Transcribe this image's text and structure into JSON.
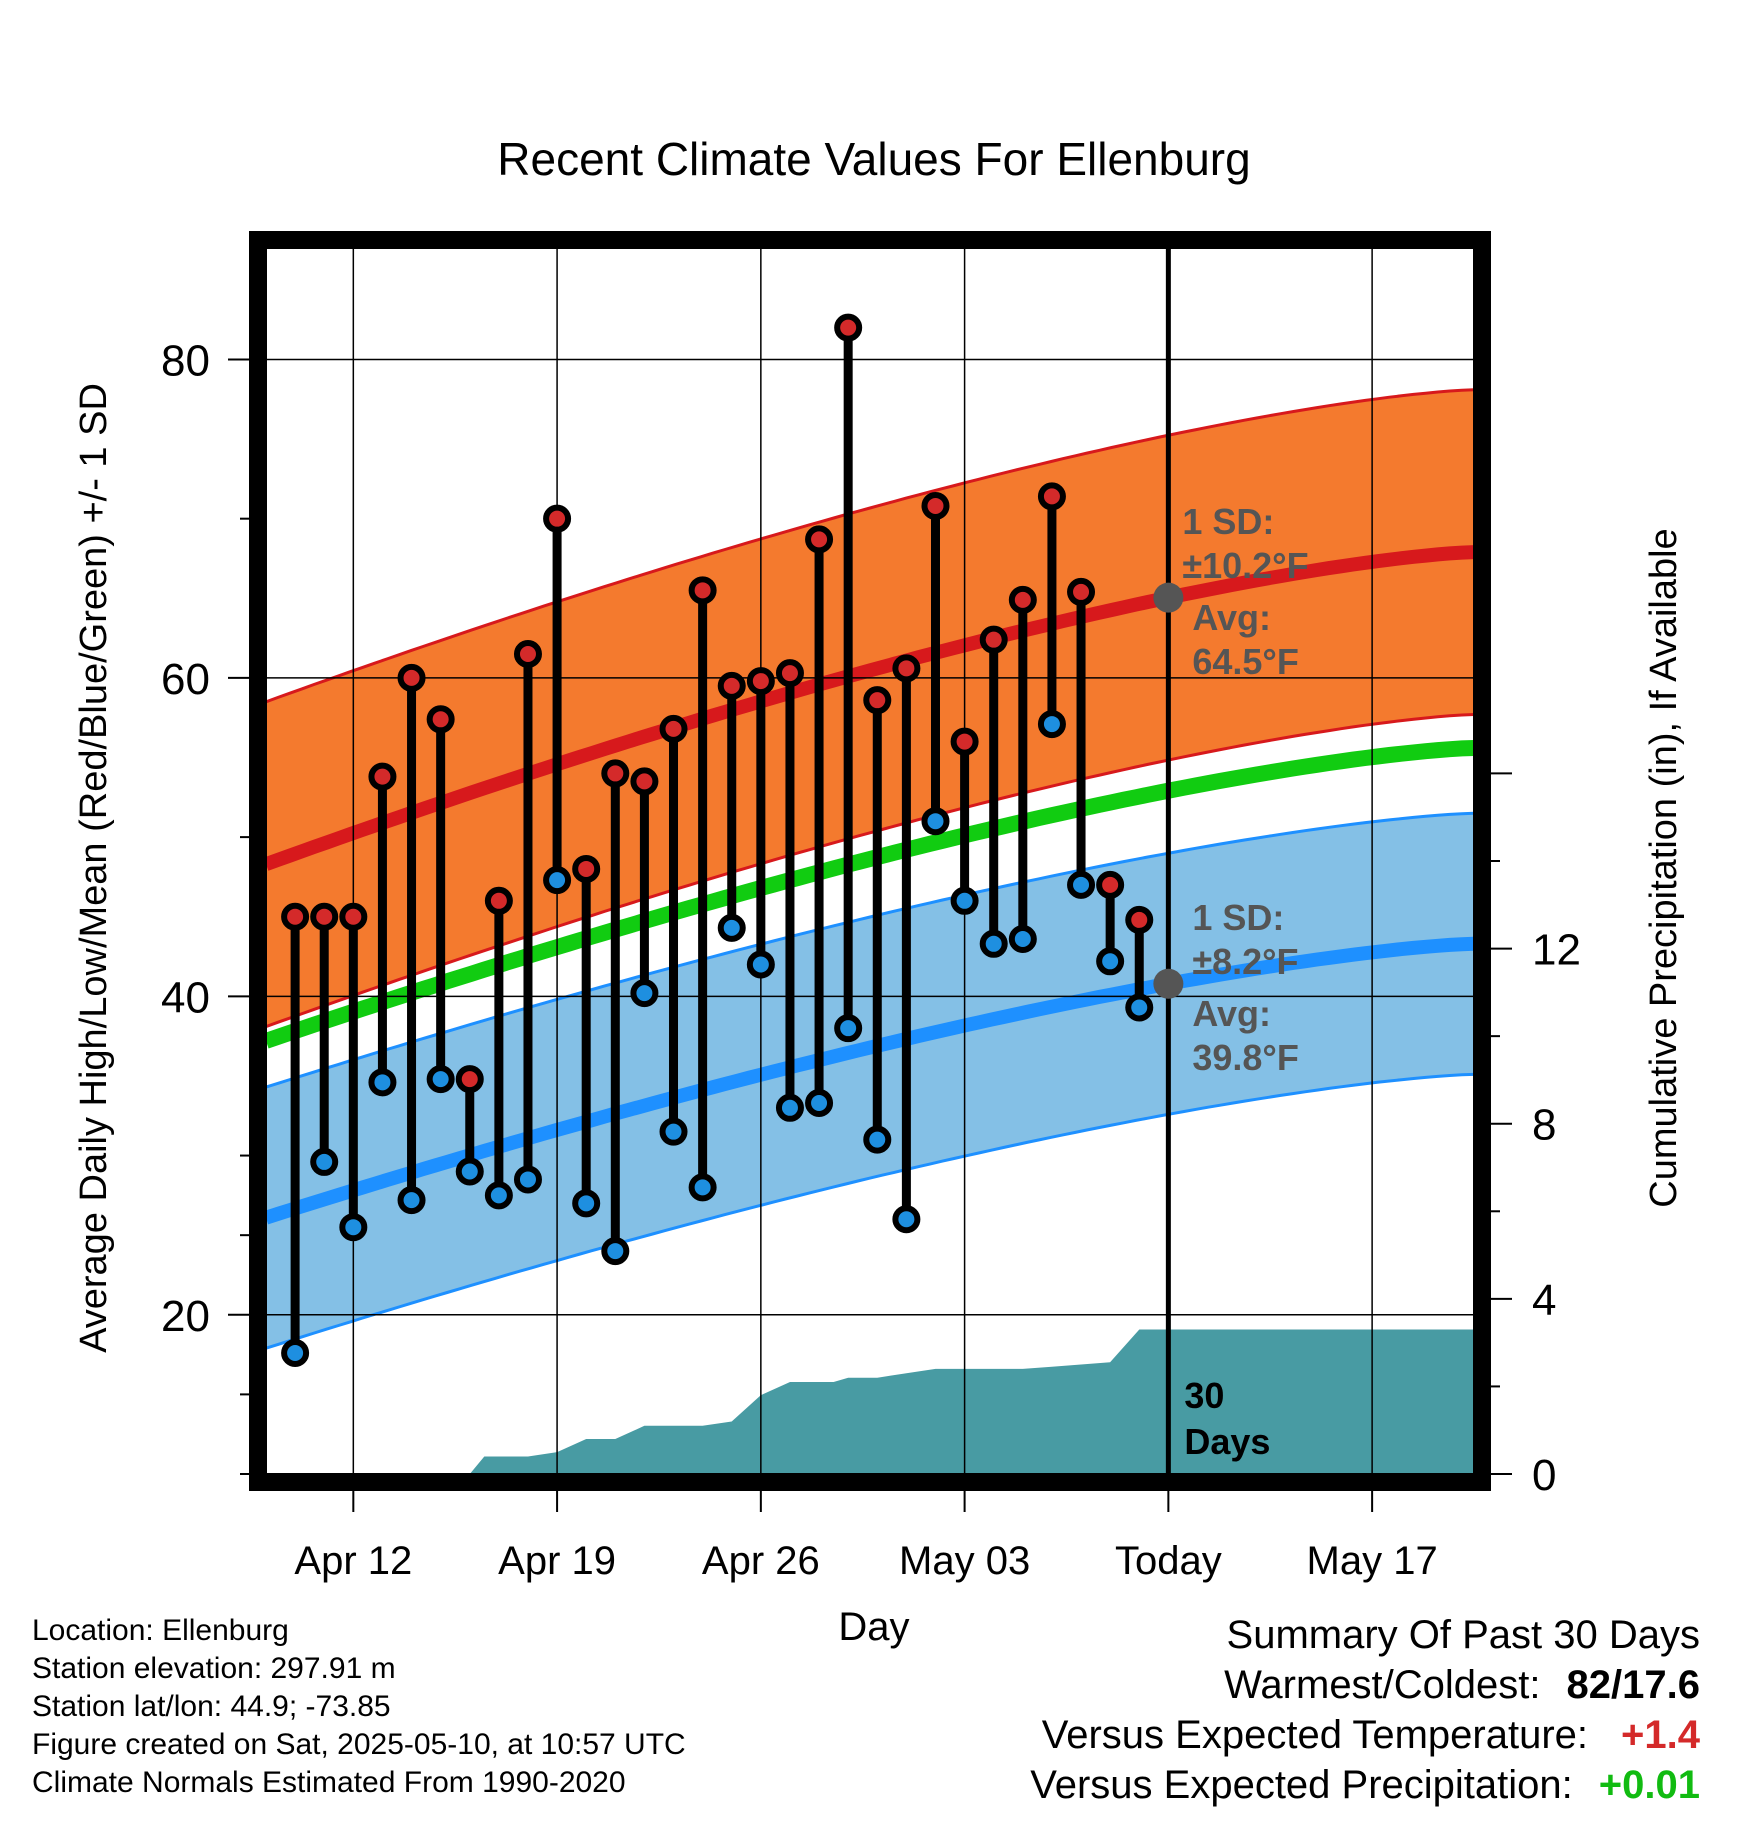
{
  "chart_data": {
    "type": "line",
    "title": "Recent Climate Values For Ellenburg",
    "xlabel": "Day",
    "ylabel": "Average Daily High/Low/Mean (Red/Blue/Green) +/- 1 SD",
    "y2label": "Cumulative Precipitation (in), If Available",
    "ylim": [
      10,
      87
    ],
    "y2lim": [
      0,
      28
    ],
    "y_ticks": [
      "20",
      "40",
      "60",
      "80"
    ],
    "y2_ticks": [
      "0",
      "4",
      "8",
      "12"
    ],
    "x_ticks": [
      "Apr 12",
      "Apr 19",
      "Apr 26",
      "May 03",
      "Today",
      "May 17"
    ],
    "x_tick_days": [
      3,
      10,
      17,
      24,
      31,
      38
    ],
    "x_range_days": [
      0,
      41.5
    ],
    "grid": true,
    "days": [
      1,
      2,
      3,
      4,
      5,
      6,
      7,
      8,
      9,
      10,
      11,
      12,
      13,
      14,
      15,
      16,
      17,
      18,
      19,
      20,
      21,
      22,
      23,
      24,
      25,
      26,
      27,
      28,
      29,
      30
    ],
    "observed_high": [
      45,
      45,
      45,
      53.8,
      60,
      57.4,
      34.8,
      46,
      61.5,
      70,
      48,
      54,
      53.5,
      56.8,
      65.5,
      59.5,
      59.8,
      60.3,
      68.7,
      82,
      58.6,
      60.6,
      70.8,
      56,
      62.4,
      64.9,
      71.4,
      65.4,
      47,
      44.8
    ],
    "observed_low": [
      17.6,
      29.6,
      25.5,
      34.6,
      27.2,
      34.8,
      29,
      27.5,
      28.5,
      47.3,
      27,
      24,
      40.2,
      31.5,
      28,
      44.3,
      42,
      33,
      33.3,
      38,
      31,
      26,
      51,
      46,
      43.3,
      43.6,
      57.1,
      47,
      42.2,
      39.3
    ],
    "normal_high": {
      "start": 48.3,
      "end": 67.9,
      "sd": 10.2
    },
    "normal_low": {
      "start": 26.1,
      "end": 43.3,
      "sd": 8.2
    },
    "normal_mean": {
      "start": 37.2,
      "end": 55.6
    },
    "cumulative_precip_days": [
      0,
      5,
      6,
      7,
      7.5,
      8,
      9,
      10,
      11,
      12,
      13,
      14,
      15,
      16,
      17,
      18,
      19,
      19.5,
      20,
      21,
      22,
      23,
      24,
      25,
      26,
      27,
      28,
      29,
      30,
      42
    ],
    "cumulative_precip": [
      0,
      0,
      0,
      0,
      0.4,
      0.4,
      0.4,
      0.5,
      0.8,
      0.8,
      1.1,
      1.1,
      1.1,
      1.2,
      1.8,
      2.1,
      2.1,
      2.1,
      2.2,
      2.2,
      2.3,
      2.4,
      2.4,
      2.4,
      2.4,
      2.45,
      2.5,
      2.55,
      3.3,
      3.3
    ],
    "today_day": 31,
    "annotations": {
      "high_sd": "1 SD:",
      "high_sd_value": "±10.2°F",
      "high_avg_label": "Avg:",
      "high_avg_value": "64.5°F",
      "low_sd": "1 SD:",
      "low_sd_value": "±8.2°F",
      "low_avg_label": "Avg:",
      "low_avg_value": "39.8°F",
      "precip_label_1": "30",
      "precip_label_2": "Days"
    },
    "colors": {
      "high_band": "#f47a2e",
      "high_line": "#d7191c",
      "low_band": "#84c0e6",
      "low_line": "#1e90ff",
      "mean_line": "#11cc11",
      "precip": "#489ba3",
      "high_marker": "#d42a2a",
      "low_marker": "#1e8fe0",
      "avg_marker": "#555555",
      "annotation_text": "#555555"
    }
  },
  "meta": {
    "location": "Location: Ellenburg",
    "elevation": "Station elevation: 297.91 m",
    "latlon": "Station lat/lon: 44.9; -73.85",
    "created": "Figure created on Sat, 2025-05-10, at 10:57 UTC",
    "normals": "Climate Normals Estimated From 1990-2020"
  },
  "summary": {
    "title": "Summary Of Past 30 Days",
    "warm_cold_label": "Warmest/Coldest:",
    "warm_cold_value": "82/17.6",
    "temp_label": "Versus Expected Temperature:",
    "temp_value": "+1.4",
    "precip_label": "Versus Expected Precipitation:",
    "precip_value": "+0.01",
    "temp_color": "#d42a2a",
    "precip_color": "#11bb11"
  }
}
